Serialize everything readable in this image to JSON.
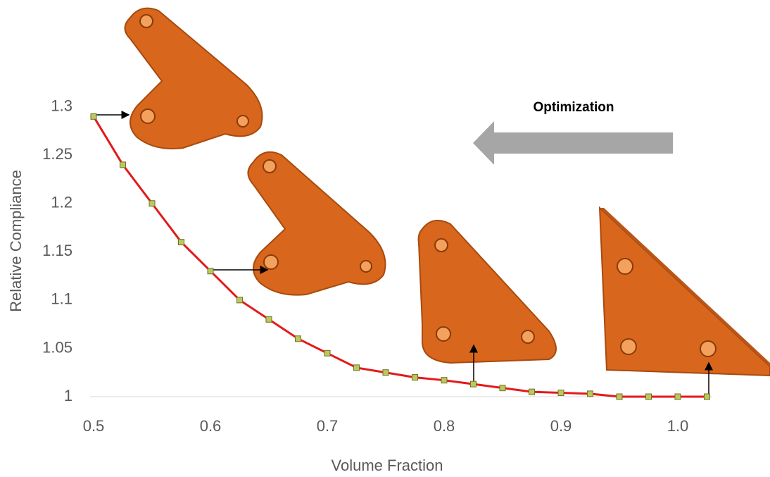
{
  "chart_data": {
    "type": "line",
    "x_label": "Volume Fraction",
    "y_label": "Relative Compliance",
    "annotation": "Optimization",
    "x": [
      0.5,
      0.525,
      0.55,
      0.575,
      0.6,
      0.625,
      0.65,
      0.675,
      0.7,
      0.725,
      0.75,
      0.775,
      0.8,
      0.825,
      0.85,
      0.875,
      0.9,
      0.925,
      0.95,
      0.975,
      1.0,
      1.025
    ],
    "series": [
      {
        "color": "#e31a1a",
        "marker_color": "#b5cc5a",
        "values": [
          1.29,
          1.24,
          1.2,
          1.16,
          1.13,
          1.1,
          1.08,
          1.06,
          1.045,
          1.03,
          1.025,
          1.02,
          1.017,
          1.013,
          1.009,
          1.005,
          1.004,
          1.003,
          1,
          1,
          1,
          1
        ]
      }
    ],
    "xlim": [
      0.49,
      1.04
    ],
    "ylim": [
      1,
      1.32
    ],
    "xticks": [
      0.5,
      0.6,
      0.7,
      0.8,
      0.9,
      {
        "value": 1,
        "label": "1.0"
      }
    ],
    "yticks": [
      1,
      1.05,
      1.1,
      1.15,
      1.2,
      1.25,
      1.3
    ]
  }
}
